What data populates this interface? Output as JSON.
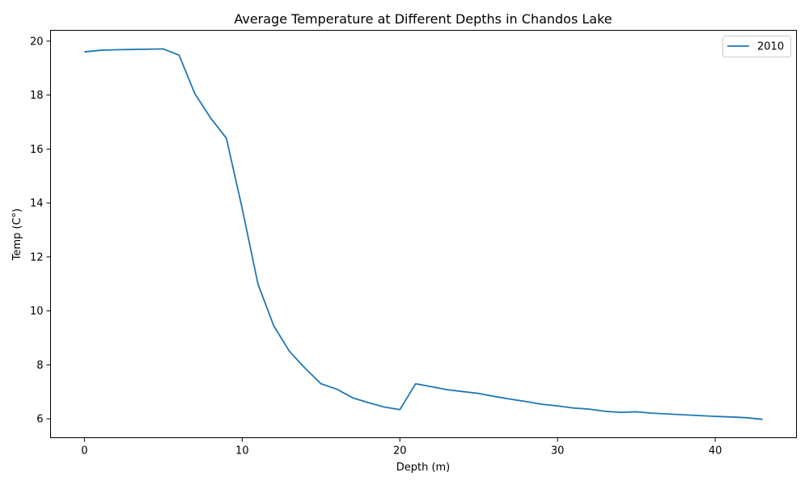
{
  "chart_data": {
    "type": "line",
    "title": "Average Temperature at Different Depths in Chandos Lake",
    "xlabel": "Depth (m)",
    "ylabel": "Temp (C°)",
    "xlim": [
      -2.15,
      45.15
    ],
    "ylim": [
      5.3,
      20.4
    ],
    "xticks": [
      0,
      10,
      20,
      30,
      40
    ],
    "yticks": [
      6,
      8,
      10,
      12,
      14,
      16,
      18,
      20
    ],
    "grid": false,
    "legend": "top-right",
    "series": [
      {
        "name": "2010",
        "color": "#1f77b4",
        "x": [
          0,
          1,
          2,
          3,
          4,
          5,
          6,
          7,
          8,
          9,
          10,
          11,
          12,
          13,
          14,
          15,
          16,
          17,
          18,
          19,
          20,
          21,
          22,
          23,
          24,
          25,
          26,
          27,
          28,
          29,
          30,
          31,
          32,
          33,
          34,
          35,
          36,
          37,
          38,
          39,
          40,
          41,
          42,
          43
        ],
        "y": [
          19.6,
          19.66,
          19.68,
          19.69,
          19.7,
          19.71,
          19.48,
          18.05,
          17.15,
          16.4,
          13.8,
          11.0,
          9.45,
          8.5,
          7.87,
          7.3,
          7.1,
          6.78,
          6.6,
          6.44,
          6.34,
          7.3,
          7.19,
          7.08,
          7.01,
          6.94,
          6.83,
          6.73,
          6.64,
          6.54,
          6.48,
          6.4,
          6.36,
          6.28,
          6.24,
          6.26,
          6.21,
          6.18,
          6.15,
          6.12,
          6.09,
          6.07,
          6.04,
          5.98
        ]
      }
    ]
  }
}
